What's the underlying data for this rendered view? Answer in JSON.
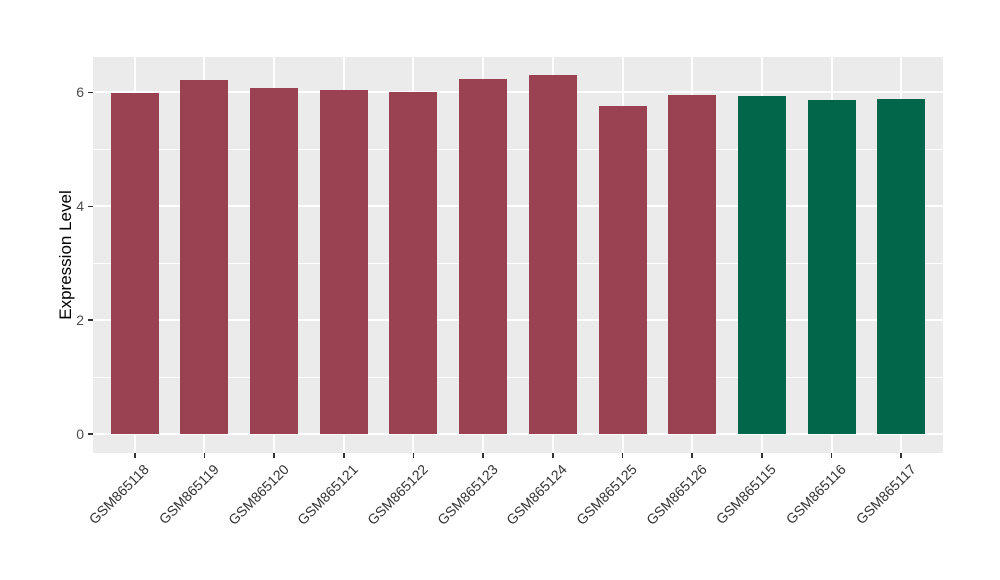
{
  "chart_data": {
    "type": "bar",
    "title": "",
    "xlabel": "",
    "ylabel": "Expression Level",
    "categories": [
      "GSM865118",
      "GSM865119",
      "GSM865120",
      "GSM865121",
      "GSM865122",
      "GSM865123",
      "GSM865124",
      "GSM865125",
      "GSM865126",
      "GSM865115",
      "GSM865116",
      "GSM865117"
    ],
    "values": [
      5.98,
      6.22,
      6.08,
      6.04,
      6.0,
      6.24,
      6.3,
      5.76,
      5.95,
      5.93,
      5.86,
      5.88
    ],
    "bar_colors": [
      "#9B4252",
      "#9B4252",
      "#9B4252",
      "#9B4252",
      "#9B4252",
      "#9B4252",
      "#9B4252",
      "#9B4252",
      "#9B4252",
      "#01664A",
      "#01664A",
      "#01664A"
    ],
    "groups": [
      {
        "name": "red-group",
        "color": "#9B4252",
        "categories": [
          "GSM865118",
          "GSM865119",
          "GSM865120",
          "GSM865121",
          "GSM865122",
          "GSM865123",
          "GSM865124",
          "GSM865125",
          "GSM865126"
        ]
      },
      {
        "name": "green-group",
        "color": "#01664A",
        "categories": [
          "GSM865115",
          "GSM865116",
          "GSM865117"
        ]
      }
    ],
    "y_ticks": [
      0,
      2,
      4,
      6
    ],
    "y_minor_ticks": [
      1,
      3,
      5
    ],
    "ylim": [
      -0.33,
      6.62
    ],
    "x_tick_rotation": 45,
    "grid": true,
    "legend_position": "none",
    "colors": {
      "panel_background": "#EBEBEB",
      "grid_major": "#FFFFFF",
      "grid_minor": "#FFFFFF",
      "axis_text": "#4D4D4D",
      "axis_title": "#000000",
      "tick_marks": "#333333",
      "figure_background": "#FFFFFF"
    }
  }
}
